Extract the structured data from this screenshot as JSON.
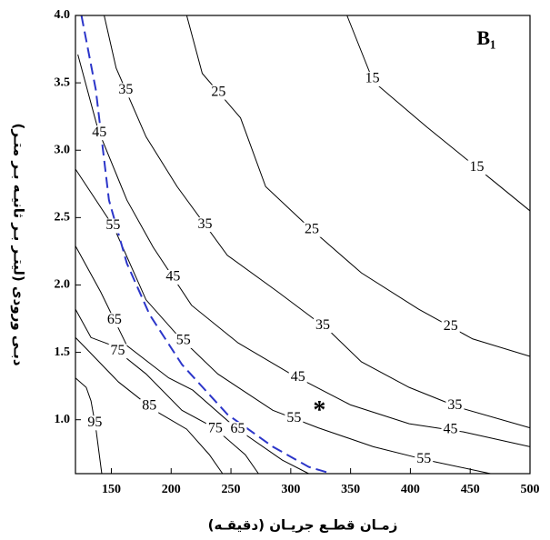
{
  "chart_data": {
    "type": "contour",
    "panel_label": "B₁",
    "x_label": "زمـان قطـع جريـان (دقيقـه)",
    "y_label": "دبـی ورودی (لیتـر بـر ثانیـه بـر متـر)",
    "xlim": [
      120,
      500
    ],
    "ylim": [
      0.6,
      4.0
    ],
    "xticks": [
      150,
      200,
      250,
      300,
      350,
      400,
      450,
      500
    ],
    "yticks": [
      {
        "value": 1,
        "label": "1.0"
      },
      1.5,
      {
        "value": 2,
        "label": "2.0"
      },
      2.5,
      {
        "value": 3,
        "label": "3.0"
      },
      3.5,
      {
        "value": 4,
        "label": "4.0"
      }
    ],
    "color": "#000000",
    "series": [
      {
        "level": 15,
        "x": [
          347,
          369,
          414,
          471,
          500
        ],
        "y": [
          4.0,
          3.51,
          3.17,
          2.76,
          2.55
        ]
      },
      {
        "level": 25,
        "x": [
          213,
          226,
          258,
          279,
          315,
          359,
          407,
          452,
          500
        ],
        "y": [
          4.0,
          3.57,
          3.24,
          2.73,
          2.43,
          2.09,
          1.82,
          1.6,
          1.47
        ]
      },
      {
        "level": 35,
        "x": [
          144,
          154,
          179,
          205,
          247,
          289,
          331,
          359,
          399,
          441,
          500
        ],
        "y": [
          4.0,
          3.61,
          3.1,
          2.73,
          2.22,
          1.95,
          1.67,
          1.43,
          1.24,
          1.09,
          0.94
        ]
      },
      {
        "level": 45,
        "x": [
          122,
          139,
          163,
          185,
          217,
          256,
          300,
          350,
          399,
          444,
          500
        ],
        "y": [
          3.71,
          3.15,
          2.63,
          2.28,
          1.85,
          1.57,
          1.34,
          1.11,
          0.97,
          0.91,
          0.8
        ]
      },
      {
        "level": 55,
        "x": [
          120,
          152,
          179,
          205,
          239,
          285,
          323,
          369,
          414,
          467
        ],
        "y": [
          2.86,
          2.43,
          1.89,
          1.63,
          1.34,
          1.07,
          0.94,
          0.8,
          0.7,
          0.6
        ]
      },
      {
        "level": 65,
        "x": [
          120,
          141,
          163,
          198,
          218,
          254,
          293,
          315
        ],
        "y": [
          2.29,
          1.95,
          1.55,
          1.31,
          1.22,
          0.94,
          0.7,
          0.6
        ]
      },
      {
        "level": 75,
        "x": [
          120,
          133,
          148,
          179,
          209,
          236,
          262,
          273
        ],
        "y": [
          1.82,
          1.61,
          1.56,
          1.34,
          1.07,
          0.94,
          0.74,
          0.6
        ]
      },
      {
        "level": 85,
        "x": [
          120,
          131,
          156,
          186,
          213,
          232,
          243
        ],
        "y": [
          1.61,
          1.51,
          1.28,
          1.07,
          0.93,
          0.74,
          0.6
        ]
      },
      {
        "level": 95,
        "x": [
          120,
          129,
          133,
          137,
          142
        ],
        "y": [
          1.31,
          1.24,
          1.14,
          0.94,
          0.6
        ]
      }
    ],
    "lines": [
      {
        "color": "#2b35c9",
        "dashed": true,
        "x": [
          125,
          137,
          148,
          163,
          182,
          209,
          247,
          285,
          315,
          334
        ],
        "y": [
          4.0,
          3.45,
          2.63,
          2.16,
          1.78,
          1.41,
          1.04,
          0.8,
          0.65,
          0.6
        ]
      }
    ],
    "points": [
      {
        "marker": "*",
        "x": 324,
        "y": 1.09
      }
    ]
  }
}
